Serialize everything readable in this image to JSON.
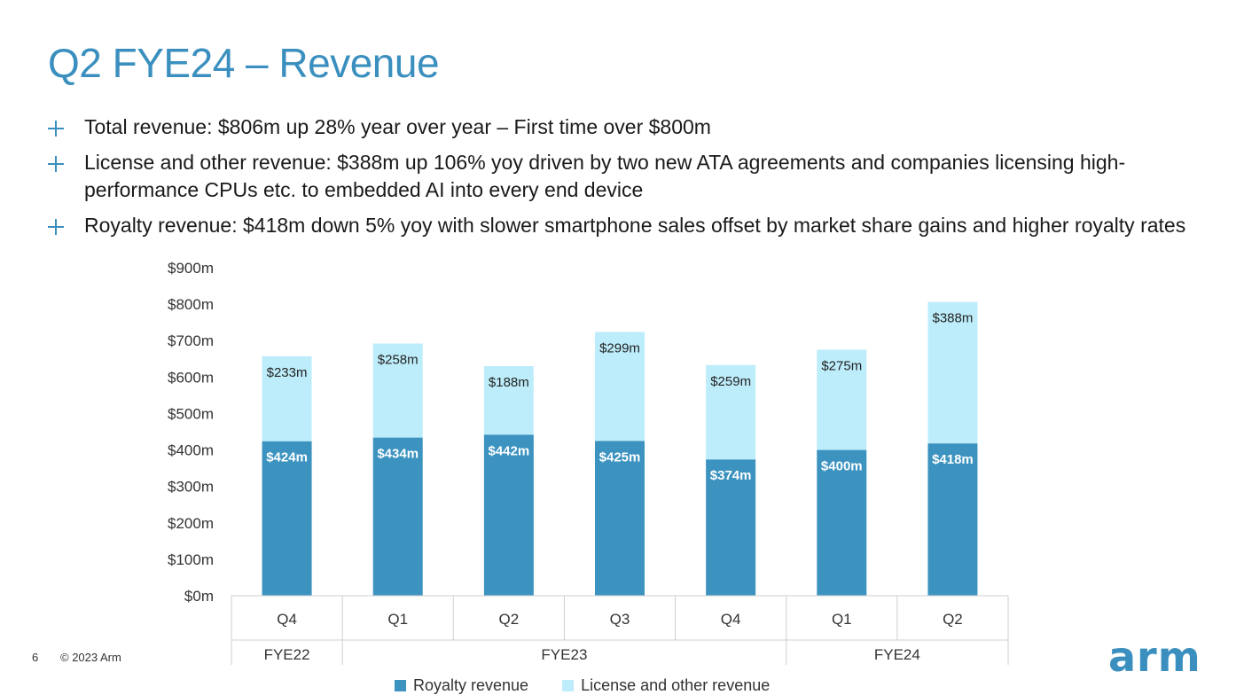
{
  "title": "Q2 FYE24 – Revenue",
  "bullets": [
    "Total revenue: $806m up 28% year over year – First time over $800m",
    "License and other revenue: $388m up 106% yoy driven by two new ATA agreements and companies licensing high-performance CPUs etc. to embedded AI into every end device",
    "Royalty revenue: $418m down 5% yoy with slower smartphone sales offset by market share gains and higher royalty rates"
  ],
  "footer": {
    "page_number": "6",
    "copyright": "© 2023 Arm",
    "logo_text": "arm"
  },
  "colors": {
    "accent": "#3a8fbf",
    "royalty": "#3c93c0",
    "license": "#bdedfb"
  },
  "chart_data": {
    "type": "bar",
    "stacked": true,
    "categories": [
      "Q4",
      "Q1",
      "Q2",
      "Q3",
      "Q4",
      "Q1",
      "Q2"
    ],
    "groups": [
      {
        "label": "FYE22",
        "count": 1
      },
      {
        "label": "FYE23",
        "count": 4
      },
      {
        "label": "FYE24",
        "count": 2
      }
    ],
    "series": [
      {
        "name": "Royalty revenue",
        "values": [
          424,
          434,
          442,
          425,
          374,
          400,
          418
        ],
        "labels": [
          "$424m",
          "$434m",
          "$442m",
          "$425m",
          "$374m",
          "$400m",
          "$418m"
        ]
      },
      {
        "name": "License and other revenue",
        "values": [
          233,
          258,
          188,
          299,
          259,
          275,
          388
        ],
        "labels": [
          "$233m",
          "$258m",
          "$188m",
          "$299m",
          "$259m",
          "$275m",
          "$388m"
        ]
      }
    ],
    "yticks": [
      "$0m",
      "$100m",
      "$200m",
      "$300m",
      "$400m",
      "$500m",
      "$600m",
      "$700m",
      "$800m",
      "$900m"
    ],
    "ylim": [
      0,
      900
    ],
    "grid": false,
    "legend_position": "bottom"
  }
}
